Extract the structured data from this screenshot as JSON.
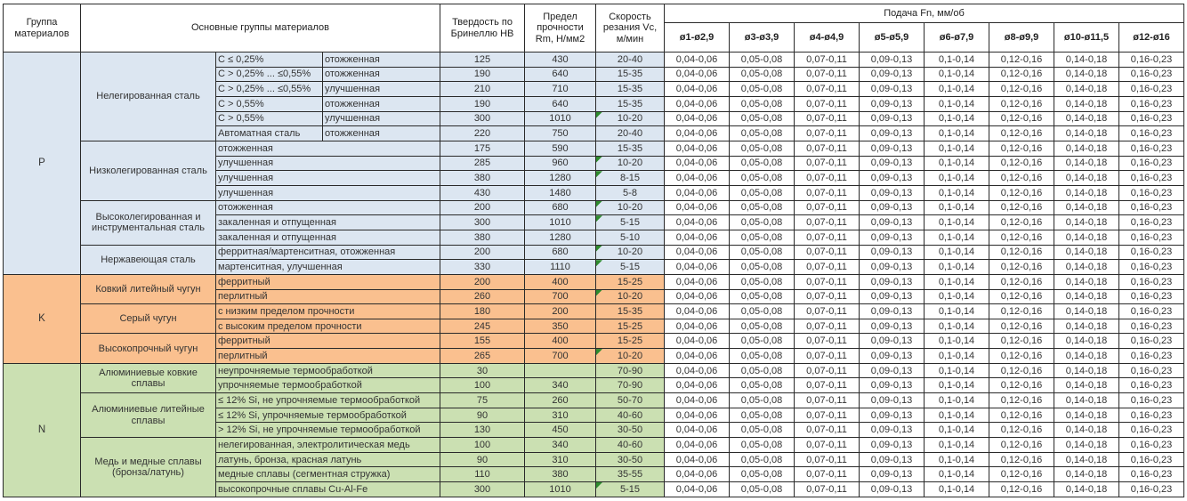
{
  "header": {
    "col_group": "Группа материалов",
    "col_main": "Основные группы материалов",
    "col_hb": "Твердость по Бринеллю HB",
    "col_rm": "Предел прочности Rm, Н/мм2",
    "col_vc": "Скорость резания Vc, м/мин",
    "col_feed": "Подача Fn, мм/об",
    "feed_cols": [
      "ø1-ø2,9",
      "ø3-ø3,9",
      "ø4-ø4,9",
      "ø5-ø5,9",
      "ø6-ø7,9",
      "ø8-ø9,9",
      "ø10-ø11,5",
      "ø12-ø16"
    ]
  },
  "feed_values": [
    "0,04-0,06",
    "0,05-0,08",
    "0,07-0,11",
    "0,09-0,13",
    "0,1-0,14",
    "0,12-0,16",
    "0,14-0,18",
    "0,16-0,23"
  ],
  "colors": {
    "group_p": "#dce6f1",
    "group_k": "#fac08f",
    "group_n": "#cbe0b2",
    "flag_marker": "#2e8b2e",
    "border": "#2a2a2a"
  },
  "groups": [
    {
      "id": "P",
      "color": "#dce6f1",
      "subgroups": [
        {
          "name": "Нелегированная сталь",
          "rows": [
            {
              "c1": "C ≤ 0,25%",
              "c2": "отожженная",
              "hb": "125",
              "rm": "430",
              "vc": "20-40",
              "flag": false
            },
            {
              "c1": "C > 0,25% ... ≤0,55%",
              "c2": "отожженная",
              "hb": "190",
              "rm": "640",
              "vc": "15-35",
              "flag": false
            },
            {
              "c1": "C > 0,25% ... ≤0,55%",
              "c2": "улучшенная",
              "hb": "210",
              "rm": "710",
              "vc": "15-35",
              "flag": false
            },
            {
              "c1": "C > 0,55%",
              "c2": "отожженная",
              "hb": "190",
              "rm": "640",
              "vc": "15-35",
              "flag": false
            },
            {
              "c1": "C > 0,55%",
              "c2": "улучшенная",
              "hb": "300",
              "rm": "1010",
              "vc": "10-20",
              "flag": true
            },
            {
              "c1": "Автоматная сталь",
              "c2": "отожженная",
              "hb": "220",
              "rm": "750",
              "vc": "20-40",
              "flag": false
            }
          ]
        },
        {
          "name": "Низколегированная сталь",
          "rows": [
            {
              "label": "отожженная",
              "hb": "175",
              "rm": "590",
              "vc": "15-35",
              "flag": false
            },
            {
              "label": "улучшенная",
              "hb": "285",
              "rm": "960",
              "vc": "10-20",
              "flag": true
            },
            {
              "label": "улучшенная",
              "hb": "380",
              "rm": "1280",
              "vc": "8-15",
              "flag": true
            },
            {
              "label": "улучшенная",
              "hb": "430",
              "rm": "1480",
              "vc": "5-8",
              "flag": false
            }
          ]
        },
        {
          "name": "Высоколегированная и инструментальная сталь",
          "rows": [
            {
              "label": "отожженная",
              "hb": "200",
              "rm": "680",
              "vc": "10-20",
              "flag": true
            },
            {
              "label": "закаленная и отпущенная",
              "hb": "300",
              "rm": "1010",
              "vc": "5-15",
              "flag": true
            },
            {
              "label": "закаленная и отпущенная",
              "hb": "380",
              "rm": "1280",
              "vc": "5-10",
              "flag": false
            }
          ]
        },
        {
          "name": "Нержавеющая сталь",
          "rows": [
            {
              "label": "ферритная/мартенситная, отожженная",
              "hb": "200",
              "rm": "680",
              "vc": "10-20",
              "flag": true
            },
            {
              "label": "мартенситная, улучшенная",
              "hb": "330",
              "rm": "1110",
              "vc": "5-15",
              "flag": true
            }
          ]
        }
      ]
    },
    {
      "id": "K",
      "color": "#fac08f",
      "subgroups": [
        {
          "name": "Ковкий литейный чугун",
          "rows": [
            {
              "label": "ферритный",
              "hb": "200",
              "rm": "400",
              "vc": "15-25",
              "flag": false
            },
            {
              "label": "перлитный",
              "hb": "260",
              "rm": "700",
              "vc": "10-20",
              "flag": true
            }
          ]
        },
        {
          "name": "Серый чугун",
          "rows": [
            {
              "label": "с низким пределом прочности",
              "hb": "180",
              "rm": "200",
              "vc": "15-35",
              "flag": false
            },
            {
              "label": "с высоким пределом прочности",
              "hb": "245",
              "rm": "350",
              "vc": "15-25",
              "flag": false
            }
          ]
        },
        {
          "name": "Высокопрочный чугун",
          "rows": [
            {
              "label": "ферритный",
              "hb": "155",
              "rm": "400",
              "vc": "15-25",
              "flag": false
            },
            {
              "label": "перлитный",
              "hb": "265",
              "rm": "700",
              "vc": "10-20",
              "flag": true
            }
          ]
        }
      ]
    },
    {
      "id": "N",
      "color": "#cbe0b2",
      "subgroups": [
        {
          "name": "Алюминиевые ковкие сплавы",
          "rows": [
            {
              "label": "неупрочняемые термообработкой",
              "hb": "30",
              "rm": "",
              "vc": "70-90",
              "flag": false
            },
            {
              "label": "упрочняемые термообработкой",
              "hb": "100",
              "rm": "340",
              "vc": "70-90",
              "flag": false
            }
          ]
        },
        {
          "name": "Алюминиевые литейные сплавы",
          "rows": [
            {
              "label": "≤ 12% Si, не упрочняемые термообработкой",
              "hb": "75",
              "rm": "260",
              "vc": "50-70",
              "flag": false
            },
            {
              "label": "≤ 12% Si, упрочняемые термообработкой",
              "hb": "90",
              "rm": "310",
              "vc": "40-60",
              "flag": false
            },
            {
              "label": "> 12% Si, не упрочняемые термообработкой",
              "hb": "130",
              "rm": "450",
              "vc": "30-50",
              "flag": false
            }
          ]
        },
        {
          "name": "Медь и медные сплавы (бронза/латунь)",
          "rows": [
            {
              "label": "нелегированная, электролитическая медь",
              "hb": "100",
              "rm": "340",
              "vc": "40-60",
              "flag": false
            },
            {
              "label": "латунь, бронза, красная латунь",
              "hb": "90",
              "rm": "310",
              "vc": "30-50",
              "flag": false
            },
            {
              "label": "медные сплавы (сегментная стружка)",
              "hb": "110",
              "rm": "380",
              "vc": "35-55",
              "flag": false
            },
            {
              "label": "высокопрочные сплавы Cu-Al-Fe",
              "hb": "300",
              "rm": "1010",
              "vc": "5-15",
              "flag": true
            }
          ]
        }
      ]
    }
  ]
}
